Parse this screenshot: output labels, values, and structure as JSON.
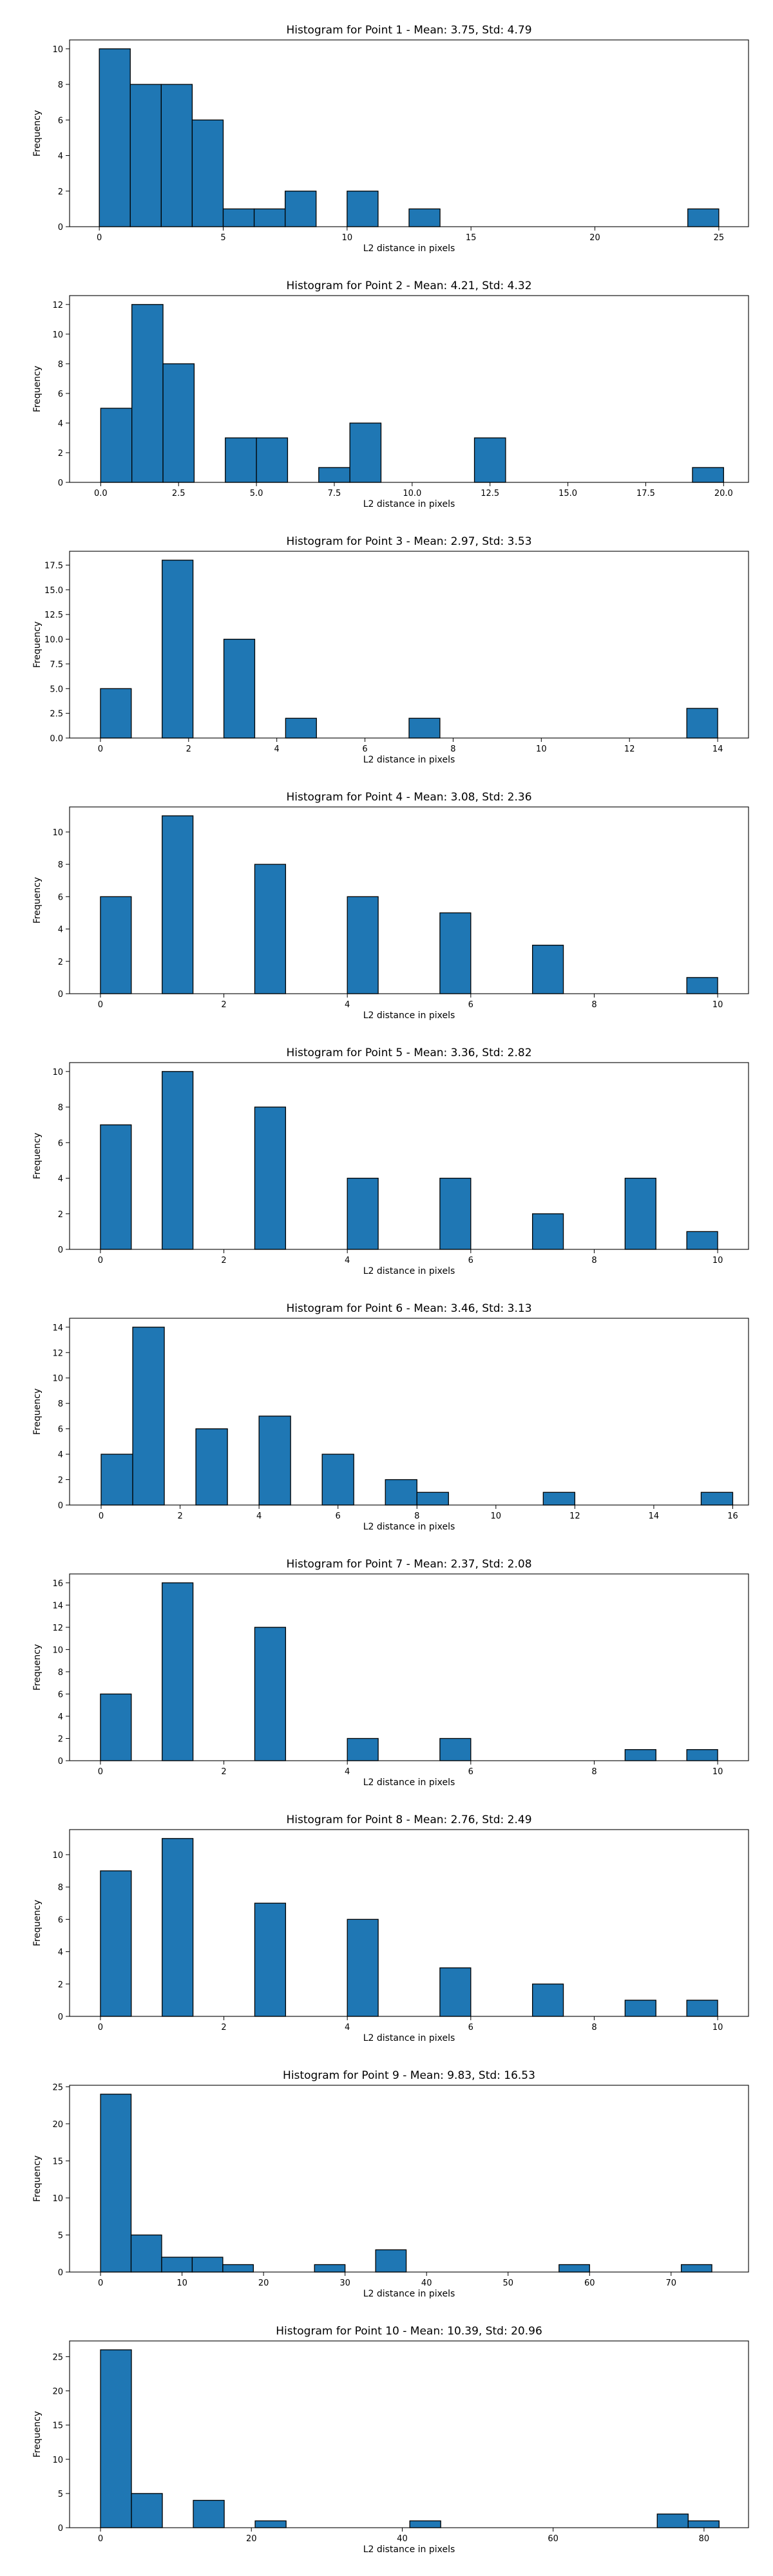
{
  "figure": {
    "bar_color": "#1f77b4",
    "edge_color": "#000000",
    "background": "#ffffff"
  },
  "chart_data": [
    {
      "type": "bar",
      "title": "Histogram for Point 1 - Mean: 3.75, Std: 4.79",
      "xlabel": "L2 distance in pixels",
      "ylabel": "Frequency",
      "xlim": [
        -1.2,
        26.2
      ],
      "ylim": [
        0,
        10.5
      ],
      "xticks": [
        0,
        5,
        10,
        15,
        20,
        25
      ],
      "xtick_labels": [
        "0",
        "5",
        "10",
        "15",
        "20",
        "25"
      ],
      "yticks": [
        0,
        2,
        4,
        6,
        8,
        10
      ],
      "ytick_labels": [
        "0",
        "2",
        "4",
        "6",
        "8",
        "10"
      ],
      "bin_width": 1.25,
      "bins": [
        {
          "x0": 0,
          "x1": 1.25,
          "count": 10
        },
        {
          "x0": 1.25,
          "x1": 2.5,
          "count": 8
        },
        {
          "x0": 2.5,
          "x1": 3.75,
          "count": 8
        },
        {
          "x0": 3.75,
          "x1": 5.0,
          "count": 6
        },
        {
          "x0": 5.0,
          "x1": 6.25,
          "count": 1
        },
        {
          "x0": 6.25,
          "x1": 7.5,
          "count": 1
        },
        {
          "x0": 7.5,
          "x1": 8.75,
          "count": 2
        },
        {
          "x0": 10.0,
          "x1": 11.25,
          "count": 2
        },
        {
          "x0": 12.5,
          "x1": 13.75,
          "count": 1
        },
        {
          "x0": 23.75,
          "x1": 25.0,
          "count": 1
        }
      ]
    },
    {
      "type": "bar",
      "title": "Histogram for Point 2 - Mean: 4.21, Std: 4.32",
      "xlabel": "L2 distance in pixels",
      "ylabel": "Frequency",
      "xlim": [
        -1.0,
        20.8
      ],
      "ylim": [
        0,
        12.6
      ],
      "xticks": [
        0,
        2.5,
        5,
        7.5,
        10,
        12.5,
        15,
        17.5,
        20
      ],
      "xtick_labels": [
        "0.0",
        "2.5",
        "5.0",
        "7.5",
        "10.0",
        "12.5",
        "15.0",
        "17.5",
        "20.0"
      ],
      "yticks": [
        0,
        2,
        4,
        6,
        8,
        10,
        12
      ],
      "ytick_labels": [
        "0",
        "2",
        "4",
        "6",
        "8",
        "10",
        "12"
      ],
      "bin_width": 1.0,
      "bins": [
        {
          "x0": 0,
          "x1": 1,
          "count": 5
        },
        {
          "x0": 1,
          "x1": 2,
          "count": 12
        },
        {
          "x0": 2,
          "x1": 3,
          "count": 8
        },
        {
          "x0": 4,
          "x1": 5,
          "count": 3
        },
        {
          "x0": 5,
          "x1": 6,
          "count": 3
        },
        {
          "x0": 7,
          "x1": 8,
          "count": 1
        },
        {
          "x0": 8,
          "x1": 9,
          "count": 4
        },
        {
          "x0": 12,
          "x1": 13,
          "count": 3
        },
        {
          "x0": 19,
          "x1": 20,
          "count": 1
        }
      ]
    },
    {
      "type": "bar",
      "title": "Histogram for Point 3 - Mean: 2.97, Std: 3.53",
      "xlabel": "L2 distance in pixels",
      "ylabel": "Frequency",
      "xlim": [
        -0.7,
        14.7
      ],
      "ylim": [
        0,
        18.9
      ],
      "xticks": [
        0,
        2,
        4,
        6,
        8,
        10,
        12,
        14
      ],
      "xtick_labels": [
        "0",
        "2",
        "4",
        "6",
        "8",
        "10",
        "12",
        "14"
      ],
      "yticks": [
        0,
        2.5,
        5,
        7.5,
        10,
        12.5,
        15,
        17.5
      ],
      "ytick_labels": [
        "0.0",
        "2.5",
        "5.0",
        "7.5",
        "10.0",
        "12.5",
        "15.0",
        "17.5"
      ],
      "bin_width": 0.7,
      "bins": [
        {
          "x0": 0,
          "x1": 0.7,
          "count": 5
        },
        {
          "x0": 1.4,
          "x1": 2.1,
          "count": 18
        },
        {
          "x0": 2.8,
          "x1": 3.5,
          "count": 10
        },
        {
          "x0": 4.2,
          "x1": 4.9,
          "count": 2
        },
        {
          "x0": 7.0,
          "x1": 7.7,
          "count": 2
        },
        {
          "x0": 13.3,
          "x1": 14.0,
          "count": 3
        }
      ]
    },
    {
      "type": "bar",
      "title": "Histogram for Point 4 - Mean: 3.08, Std: 2.36",
      "xlabel": "L2 distance in pixels",
      "ylabel": "Frequency",
      "xlim": [
        -0.5,
        10.5
      ],
      "ylim": [
        0,
        11.55
      ],
      "xticks": [
        0,
        2,
        4,
        6,
        8,
        10
      ],
      "xtick_labels": [
        "0",
        "2",
        "4",
        "6",
        "8",
        "10"
      ],
      "yticks": [
        0,
        2,
        4,
        6,
        8,
        10
      ],
      "ytick_labels": [
        "0",
        "2",
        "4",
        "6",
        "8",
        "10"
      ],
      "bin_width": 0.5,
      "bins": [
        {
          "x0": 0,
          "x1": 0.5,
          "count": 6
        },
        {
          "x0": 1.0,
          "x1": 1.5,
          "count": 11
        },
        {
          "x0": 2.5,
          "x1": 3.0,
          "count": 8
        },
        {
          "x0": 4.0,
          "x1": 4.5,
          "count": 6
        },
        {
          "x0": 5.5,
          "x1": 6.0,
          "count": 5
        },
        {
          "x0": 7.0,
          "x1": 7.5,
          "count": 3
        },
        {
          "x0": 9.5,
          "x1": 10.0,
          "count": 1
        }
      ]
    },
    {
      "type": "bar",
      "title": "Histogram for Point 5 - Mean: 3.36, Std: 2.82",
      "xlabel": "L2 distance in pixels",
      "ylabel": "Frequency",
      "xlim": [
        -0.5,
        10.5
      ],
      "ylim": [
        0,
        10.5
      ],
      "xticks": [
        0,
        2,
        4,
        6,
        8,
        10
      ],
      "xtick_labels": [
        "0",
        "2",
        "4",
        "6",
        "8",
        "10"
      ],
      "yticks": [
        0,
        2,
        4,
        6,
        8,
        10
      ],
      "ytick_labels": [
        "0",
        "2",
        "4",
        "6",
        "8",
        "10"
      ],
      "bin_width": 0.5,
      "bins": [
        {
          "x0": 0,
          "x1": 0.5,
          "count": 7
        },
        {
          "x0": 1.0,
          "x1": 1.5,
          "count": 10
        },
        {
          "x0": 2.5,
          "x1": 3.0,
          "count": 8
        },
        {
          "x0": 4.0,
          "x1": 4.5,
          "count": 4
        },
        {
          "x0": 5.5,
          "x1": 6.0,
          "count": 4
        },
        {
          "x0": 7.0,
          "x1": 7.5,
          "count": 2
        },
        {
          "x0": 8.5,
          "x1": 9.0,
          "count": 4
        },
        {
          "x0": 9.5,
          "x1": 10.0,
          "count": 1
        }
      ]
    },
    {
      "type": "bar",
      "title": "Histogram for Point 6 - Mean: 3.46, Std: 3.13",
      "xlabel": "L2 distance in pixels",
      "ylabel": "Frequency",
      "xlim": [
        -0.8,
        16.4
      ],
      "ylim": [
        0,
        14.7
      ],
      "xticks": [
        0,
        2,
        4,
        6,
        8,
        10,
        12,
        14,
        16
      ],
      "xtick_labels": [
        "0",
        "2",
        "4",
        "6",
        "8",
        "10",
        "12",
        "14",
        "16"
      ],
      "yticks": [
        0,
        2,
        4,
        6,
        8,
        10,
        12,
        14
      ],
      "ytick_labels": [
        "0",
        "2",
        "4",
        "6",
        "8",
        "10",
        "12",
        "14"
      ],
      "bin_width": 0.8,
      "bins": [
        {
          "x0": 0,
          "x1": 0.8,
          "count": 4
        },
        {
          "x0": 0.8,
          "x1": 1.6,
          "count": 14
        },
        {
          "x0": 2.4,
          "x1": 3.2,
          "count": 6
        },
        {
          "x0": 4.0,
          "x1": 4.8,
          "count": 7
        },
        {
          "x0": 5.6,
          "x1": 6.4,
          "count": 4
        },
        {
          "x0": 7.2,
          "x1": 8.0,
          "count": 2
        },
        {
          "x0": 8.0,
          "x1": 8.8,
          "count": 1
        },
        {
          "x0": 11.2,
          "x1": 12.0,
          "count": 1
        },
        {
          "x0": 15.2,
          "x1": 16.0,
          "count": 1
        }
      ]
    },
    {
      "type": "bar",
      "title": "Histogram for Point 7 - Mean: 2.37, Std: 2.08",
      "xlabel": "L2 distance in pixels",
      "ylabel": "Frequency",
      "xlim": [
        -0.5,
        10.5
      ],
      "ylim": [
        0,
        16.8
      ],
      "xticks": [
        0,
        2,
        4,
        6,
        8,
        10
      ],
      "xtick_labels": [
        "0",
        "2",
        "4",
        "6",
        "8",
        "10"
      ],
      "yticks": [
        0,
        2,
        4,
        6,
        8,
        10,
        12,
        14,
        16
      ],
      "ytick_labels": [
        "0",
        "2",
        "4",
        "6",
        "8",
        "10",
        "12",
        "14",
        "16"
      ],
      "bin_width": 0.5,
      "bins": [
        {
          "x0": 0,
          "x1": 0.5,
          "count": 6
        },
        {
          "x0": 1.0,
          "x1": 1.5,
          "count": 16
        },
        {
          "x0": 2.5,
          "x1": 3.0,
          "count": 12
        },
        {
          "x0": 4.0,
          "x1": 4.5,
          "count": 2
        },
        {
          "x0": 5.5,
          "x1": 6.0,
          "count": 2
        },
        {
          "x0": 8.5,
          "x1": 9.0,
          "count": 1
        },
        {
          "x0": 9.5,
          "x1": 10.0,
          "count": 1
        }
      ]
    },
    {
      "type": "bar",
      "title": "Histogram for Point 8 - Mean: 2.76, Std: 2.49",
      "xlabel": "L2 distance in pixels",
      "ylabel": "Frequency",
      "xlim": [
        -0.5,
        10.5
      ],
      "ylim": [
        0,
        11.55
      ],
      "xticks": [
        0,
        2,
        4,
        6,
        8,
        10
      ],
      "xtick_labels": [
        "0",
        "2",
        "4",
        "6",
        "8",
        "10"
      ],
      "yticks": [
        0,
        2,
        4,
        6,
        8,
        10
      ],
      "ytick_labels": [
        "0",
        "2",
        "4",
        "6",
        "8",
        "10"
      ],
      "bin_width": 0.5,
      "bins": [
        {
          "x0": 0,
          "x1": 0.5,
          "count": 9
        },
        {
          "x0": 1.0,
          "x1": 1.5,
          "count": 11
        },
        {
          "x0": 2.5,
          "x1": 3.0,
          "count": 7
        },
        {
          "x0": 4.0,
          "x1": 4.5,
          "count": 6
        },
        {
          "x0": 5.5,
          "x1": 6.0,
          "count": 3
        },
        {
          "x0": 7.0,
          "x1": 7.5,
          "count": 2
        },
        {
          "x0": 8.5,
          "x1": 9.0,
          "count": 1
        },
        {
          "x0": 9.5,
          "x1": 10.0,
          "count": 1
        }
      ]
    },
    {
      "type": "bar",
      "title": "Histogram for Point 9 - Mean: 9.83, Std: 16.53",
      "xlabel": "L2 distance in pixels",
      "ylabel": "Frequency",
      "xlim": [
        -3.8,
        79.5
      ],
      "ylim": [
        0,
        25.2
      ],
      "xticks": [
        0,
        10,
        20,
        30,
        40,
        50,
        60,
        70
      ],
      "xtick_labels": [
        "0",
        "10",
        "20",
        "30",
        "40",
        "50",
        "60",
        "70"
      ],
      "yticks": [
        0,
        5,
        10,
        15,
        20,
        25
      ],
      "ytick_labels": [
        "0",
        "5",
        "10",
        "15",
        "20",
        "25"
      ],
      "bin_width": 3.75,
      "bins": [
        {
          "x0": 0,
          "x1": 3.75,
          "count": 24
        },
        {
          "x0": 3.75,
          "x1": 7.5,
          "count": 5
        },
        {
          "x0": 7.5,
          "x1": 11.25,
          "count": 2
        },
        {
          "x0": 11.25,
          "x1": 15.0,
          "count": 2
        },
        {
          "x0": 15.0,
          "x1": 18.75,
          "count": 1
        },
        {
          "x0": 26.25,
          "x1": 30.0,
          "count": 1
        },
        {
          "x0": 33.75,
          "x1": 37.5,
          "count": 3
        },
        {
          "x0": 56.25,
          "x1": 60.0,
          "count": 1
        },
        {
          "x0": 71.25,
          "x1": 75.0,
          "count": 1
        }
      ]
    },
    {
      "type": "bar",
      "title": "Histogram for Point 10 - Mean: 10.39, Std: 20.96",
      "xlabel": "L2 distance in pixels",
      "ylabel": "Frequency",
      "xlim": [
        -4.1,
        85.9
      ],
      "ylim": [
        0,
        27.3
      ],
      "xticks": [
        0,
        20,
        40,
        60,
        80
      ],
      "xtick_labels": [
        "0",
        "20",
        "40",
        "60",
        "80"
      ],
      "yticks": [
        0,
        5,
        10,
        15,
        20,
        25
      ],
      "ytick_labels": [
        "0",
        "5",
        "10",
        "15",
        "20",
        "25"
      ],
      "bin_width": 4.1,
      "bins": [
        {
          "x0": 0,
          "x1": 4.1,
          "count": 26
        },
        {
          "x0": 4.1,
          "x1": 8.2,
          "count": 5
        },
        {
          "x0": 12.3,
          "x1": 16.4,
          "count": 4
        },
        {
          "x0": 20.5,
          "x1": 24.6,
          "count": 1
        },
        {
          "x0": 41.0,
          "x1": 45.1,
          "count": 1
        },
        {
          "x0": 73.8,
          "x1": 77.9,
          "count": 2
        },
        {
          "x0": 77.9,
          "x1": 82.0,
          "count": 1
        }
      ]
    }
  ]
}
